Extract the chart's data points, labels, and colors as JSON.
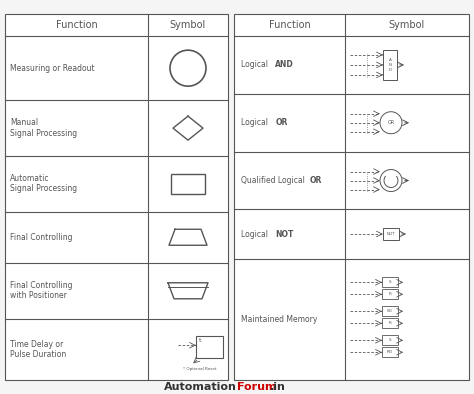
{
  "bg_color": "#f5f5f5",
  "fc": "#ffffff",
  "ec": "#555555",
  "text_color": "#222222",
  "red_color": "#cc0000",
  "footer_text1": "Automation",
  "footer_text2": "Forum",
  "footer_text3": ".in",
  "left_rows": [
    "Measuring or Readout",
    "Manual\nSignal Processing",
    "Automatic\nSignal Processing",
    "Final Controlling",
    "Final Controlling\nwith Positioner",
    "Time Delay or\nPulse Duration"
  ],
  "right_rows": [
    [
      [
        "Logical  ",
        false
      ],
      [
        "AND",
        true
      ]
    ],
    [
      [
        "Logical  ",
        false
      ],
      [
        "OR",
        true
      ]
    ],
    [
      [
        "Qualified Logical ",
        false
      ],
      [
        "OR",
        true
      ]
    ],
    [
      [
        "Logical  ",
        false
      ],
      [
        "NOT",
        true
      ]
    ],
    [
      [
        "Maintained Memory",
        false
      ]
    ]
  ],
  "mem_labels": [
    "S",
    "R",
    "SO",
    "R",
    "S",
    "RO"
  ]
}
